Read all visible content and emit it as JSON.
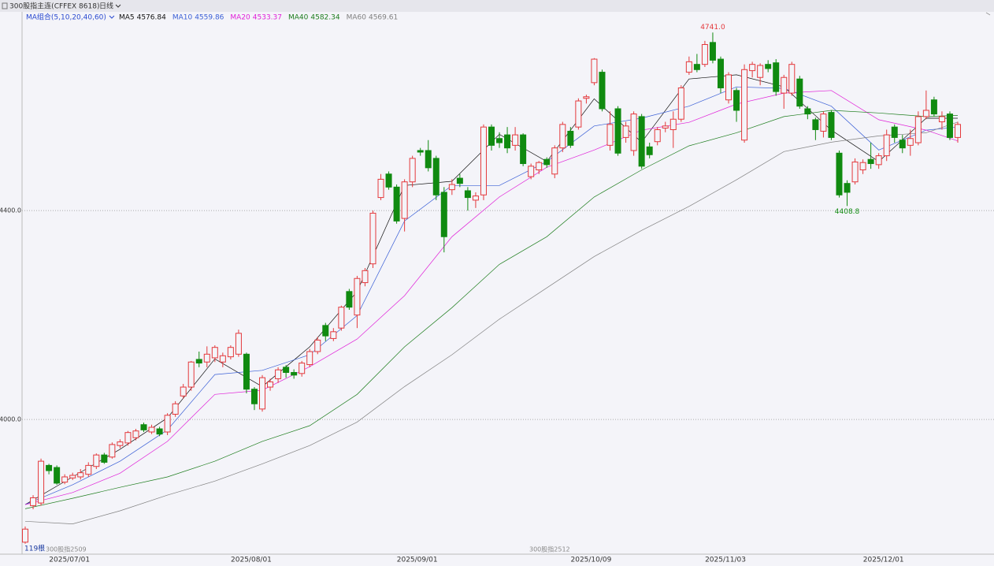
{
  "header": {
    "instrument": "300股指主连(CFFEX 8618)",
    "period": "日线"
  },
  "chart_data": {
    "type": "candlestick",
    "ma_group_label": "MA组合(5,10,20,40,60)",
    "bar_count_label": "119根",
    "contract_notes": [
      "300股指2509",
      "300股指2512"
    ],
    "categories": [
      null,
      null,
      null,
      null,
      null,
      null,
      "2025/07/01",
      null,
      null,
      null,
      null,
      null,
      null,
      null,
      null,
      null,
      null,
      null,
      null,
      null,
      null,
      null,
      null,
      null,
      null,
      null,
      null,
      null,
      null,
      "2025/08/01",
      null,
      null,
      null,
      null,
      null,
      null,
      null,
      null,
      null,
      null,
      null,
      null,
      null,
      null,
      null,
      null,
      null,
      null,
      null,
      null,
      "2025/09/01",
      null,
      null,
      null,
      null,
      null,
      null,
      null,
      null,
      null,
      null,
      null,
      null,
      null,
      null,
      null,
      null,
      null,
      null,
      null,
      null,
      null,
      "2025/10/09",
      null,
      null,
      null,
      null,
      null,
      null,
      null,
      null,
      null,
      null,
      null,
      null,
      null,
      null,
      null,
      null,
      "2025/11/03",
      null,
      null,
      null,
      null,
      null,
      null,
      null,
      null,
      null,
      null,
      null,
      null,
      null,
      null,
      null,
      null,
      null,
      null,
      null,
      "2025/12/01",
      null,
      null,
      null,
      null,
      null,
      null,
      null,
      null,
      null
    ],
    "open": [
      3765,
      3835,
      3840,
      3912,
      3908,
      3880,
      3888,
      3890,
      3895,
      3910,
      3932,
      3928,
      3950,
      3955,
      3965,
      3990,
      3976,
      3982,
      3976,
      4010,
      4045,
      4062,
      4115,
      4110,
      4118,
      4110,
      4120,
      4125,
      4125,
      4058,
      4020,
      4062,
      4078,
      4100,
      4090,
      4088,
      4105,
      4130,
      4180,
      4155,
      4175,
      4245,
      4200,
      4262,
      4298,
      4425,
      4470,
      4445,
      4385,
      4455,
      4515,
      4515,
      4500,
      4435,
      4440,
      4462,
      4438,
      4420,
      4430,
      4560,
      4538,
      4545,
      4525,
      4545,
      4465,
      4478,
      4498,
      4470,
      4520,
      4552,
      4560,
      4615,
      4645,
      4665,
      4525,
      4595,
      4540,
      4515,
      4580,
      4522,
      4532,
      4558,
      4555,
      4575,
      4665,
      4680,
      4680,
      4722,
      4690,
      4612,
      4630,
      4535,
      4668,
      4655,
      4680,
      4683,
      4625,
      4625,
      4652,
      4595,
      4574,
      4552,
      4588,
      4510,
      4452,
      4455,
      4478,
      4498,
      4488,
      4505,
      4560,
      4535,
      4525,
      4530,
      4580,
      4612,
      4570,
      4585,
      4540
    ],
    "high": [
      3795,
      3855,
      3925,
      3915,
      3912,
      3895,
      3898,
      3905,
      3918,
      3935,
      3936,
      3956,
      3962,
      3978,
      3982,
      3994,
      3990,
      3986,
      4012,
      4035,
      4068,
      4112,
      4130,
      4140,
      4142,
      4128,
      4142,
      4172,
      4128,
      4062,
      4085,
      4078,
      4100,
      4104,
      4096,
      4112,
      4135,
      4158,
      4185,
      4175,
      4218,
      4250,
      4275,
      4290,
      4400,
      4470,
      4475,
      4450,
      4460,
      4505,
      4520,
      4535,
      4505,
      4445,
      4460,
      4470,
      4445,
      4435,
      4565,
      4565,
      4550,
      4560,
      4560,
      4548,
      4490,
      4495,
      4502,
      4525,
      4570,
      4560,
      4615,
      4622,
      4692,
      4670,
      4590,
      4600,
      4570,
      4590,
      4585,
      4530,
      4560,
      4570,
      4590,
      4640,
      4695,
      4700,
      4725,
      4741,
      4695,
      4665,
      4635,
      4680,
      4685,
      4682,
      4688,
      4690,
      4660,
      4685,
      4658,
      4600,
      4578,
      4590,
      4592,
      4515,
      4458,
      4500,
      4498,
      4530,
      4510,
      4555,
      4565,
      4545,
      4555,
      4590,
      4630,
      4618,
      4590,
      4590,
      4570
    ],
    "low": [
      3762,
      3828,
      3835,
      3895,
      3875,
      3876,
      3884,
      3885,
      3890,
      3905,
      3915,
      3925,
      3945,
      3950,
      3960,
      3976,
      3972,
      3968,
      3970,
      4005,
      4040,
      4055,
      4100,
      4100,
      4110,
      4100,
      4115,
      4120,
      4050,
      4018,
      4015,
      4055,
      4070,
      4080,
      4078,
      4082,
      4100,
      4125,
      4150,
      4150,
      4170,
      4210,
      4175,
      4255,
      4290,
      4420,
      4440,
      4375,
      4360,
      4445,
      4505,
      4475,
      4420,
      4320,
      4430,
      4445,
      4400,
      4405,
      4420,
      4515,
      4520,
      4510,
      4515,
      4485,
      4460,
      4470,
      4482,
      4462,
      4512,
      4520,
      4555,
      4605,
      4640,
      4590,
      4515,
      4505,
      4530,
      4505,
      4480,
      4500,
      4525,
      4550,
      4520,
      4570,
      4660,
      4665,
      4675,
      4682,
      4625,
      4605,
      4570,
      4530,
      4655,
      4640,
      4665,
      4620,
      4595,
      4620,
      4595,
      4575,
      4535,
      4540,
      4535,
      4425,
      4408.8,
      4450,
      4470,
      4480,
      4480,
      4495,
      4530,
      4510,
      4505,
      4525,
      4575,
      4580,
      4555,
      4535,
      4530
    ],
    "close": [
      3790,
      3850,
      3920,
      3902,
      3878,
      3890,
      3893,
      3898,
      3912,
      3932,
      3918,
      3952,
      3957,
      3975,
      3978,
      3980,
      3985,
      3972,
      4008,
      4030,
      4062,
      4110,
      4108,
      4125,
      4138,
      4122,
      4138,
      4165,
      4058,
      4030,
      4080,
      4072,
      4095,
      4090,
      4085,
      4108,
      4130,
      4152,
      4160,
      4168,
      4215,
      4215,
      4270,
      4285,
      4395,
      4460,
      4445,
      4380,
      4455,
      4500,
      4512,
      4482,
      4430,
      4350,
      4450,
      4452,
      4425,
      4428,
      4560,
      4525,
      4530,
      4520,
      4545,
      4490,
      4485,
      4492,
      4488,
      4520,
      4565,
      4525,
      4610,
      4618,
      4690,
      4595,
      4565,
      4510,
      4562,
      4585,
      4485,
      4507,
      4555,
      4562,
      4575,
      4635,
      4685,
      4670,
      4718,
      4688,
      4635,
      4660,
      4592,
      4670,
      4680,
      4678,
      4672,
      4628,
      4655,
      4680,
      4600,
      4585,
      4555,
      4585,
      4540,
      4430,
      4435,
      4493,
      4492,
      4490,
      4505,
      4545,
      4540,
      4520,
      4538,
      4580,
      4592,
      4585,
      4580,
      4540,
      4565
    ],
    "up_color": "#e4393c",
    "down_color": "#108a10",
    "annotations": [
      {
        "text": "4741.0",
        "value": 4741,
        "at": "high",
        "color": "#e4393c"
      },
      {
        "text": "4408.8",
        "value": 4408.8,
        "at": "low",
        "color": "#108a10"
      }
    ],
    "ma": [
      {
        "name": "MA5",
        "legend_value": 4576.84,
        "color": "#111111",
        "x": [
          0,
          6,
          12,
          18,
          24,
          30,
          36,
          42,
          48,
          54,
          60,
          66,
          72,
          78,
          84,
          90,
          96,
          102,
          108,
          114,
          118
        ],
        "values": [
          3837,
          3890,
          3943,
          4003,
          4116,
          4063,
          4139,
          4245,
          4448,
          4456,
          4546,
          4494,
          4614,
          4531,
          4652,
          4660,
          4637,
          4554,
          4494,
          4577,
          4576.84
        ]
      },
      {
        "name": "MA10",
        "legend_value": 4559.86,
        "color": "#3a5fd6",
        "x": [
          0,
          6,
          12,
          18,
          24,
          30,
          36,
          42,
          48,
          54,
          60,
          66,
          72,
          78,
          84,
          90,
          96,
          102,
          108,
          114,
          118
        ],
        "values": [
          3837,
          3875,
          3920,
          3980,
          4086,
          4094,
          4124,
          4199,
          4380,
          4448,
          4448,
          4494,
          4562,
          4577,
          4600,
          4637,
          4634,
          4600,
          4516,
          4554,
          4559.86
        ]
      },
      {
        "name": "MA20",
        "legend_value": 4533.37,
        "color": "#e020d8",
        "x": [
          0,
          6,
          12,
          18,
          24,
          30,
          36,
          42,
          48,
          54,
          60,
          66,
          72,
          78,
          84,
          90,
          96,
          102,
          108,
          114,
          118
        ],
        "values": [
          3837,
          3860,
          3897,
          3958,
          4048,
          4056,
          4101,
          4154,
          4237,
          4350,
          4426,
          4483,
          4516,
          4554,
          4569,
          4604,
          4625,
          4630,
          4574,
          4554,
          4533.37
        ]
      },
      {
        "name": "MA40",
        "legend_value": 4582.34,
        "color": "#1d7d1d",
        "x": [
          0,
          6,
          12,
          18,
          24,
          30,
          36,
          42,
          48,
          54,
          60,
          66,
          72,
          78,
          84,
          90,
          96,
          102,
          108,
          114,
          118
        ],
        "values": [
          3829,
          3849,
          3870,
          3890,
          3920,
          3958,
          3988,
          4048,
          4139,
          4214,
          4297,
          4350,
          4426,
          4478,
          4524,
          4549,
          4580,
          4592,
          4587,
          4580,
          4582.34
        ]
      },
      {
        "name": "MA60",
        "legend_value": 4569.61,
        "color": "#808080",
        "x": [
          0,
          6,
          12,
          18,
          24,
          30,
          36,
          42,
          48,
          54,
          60,
          66,
          72,
          78,
          84,
          90,
          96,
          102,
          108,
          114,
          118
        ],
        "values": [
          3805,
          3800,
          3825,
          3855,
          3882,
          3915,
          3950,
          3995,
          4063,
          4124,
          4192,
          4252,
          4312,
          4362,
          4408,
          4459,
          4513,
          4531,
          4543,
          4549,
          4569.61
        ]
      }
    ],
    "ylim": [
      3742,
      4758
    ],
    "yticks": [
      {
        "value": 4000,
        "label": "4000.0"
      },
      {
        "value": 4400,
        "label": "4400.0"
      }
    ],
    "grid": true
  }
}
